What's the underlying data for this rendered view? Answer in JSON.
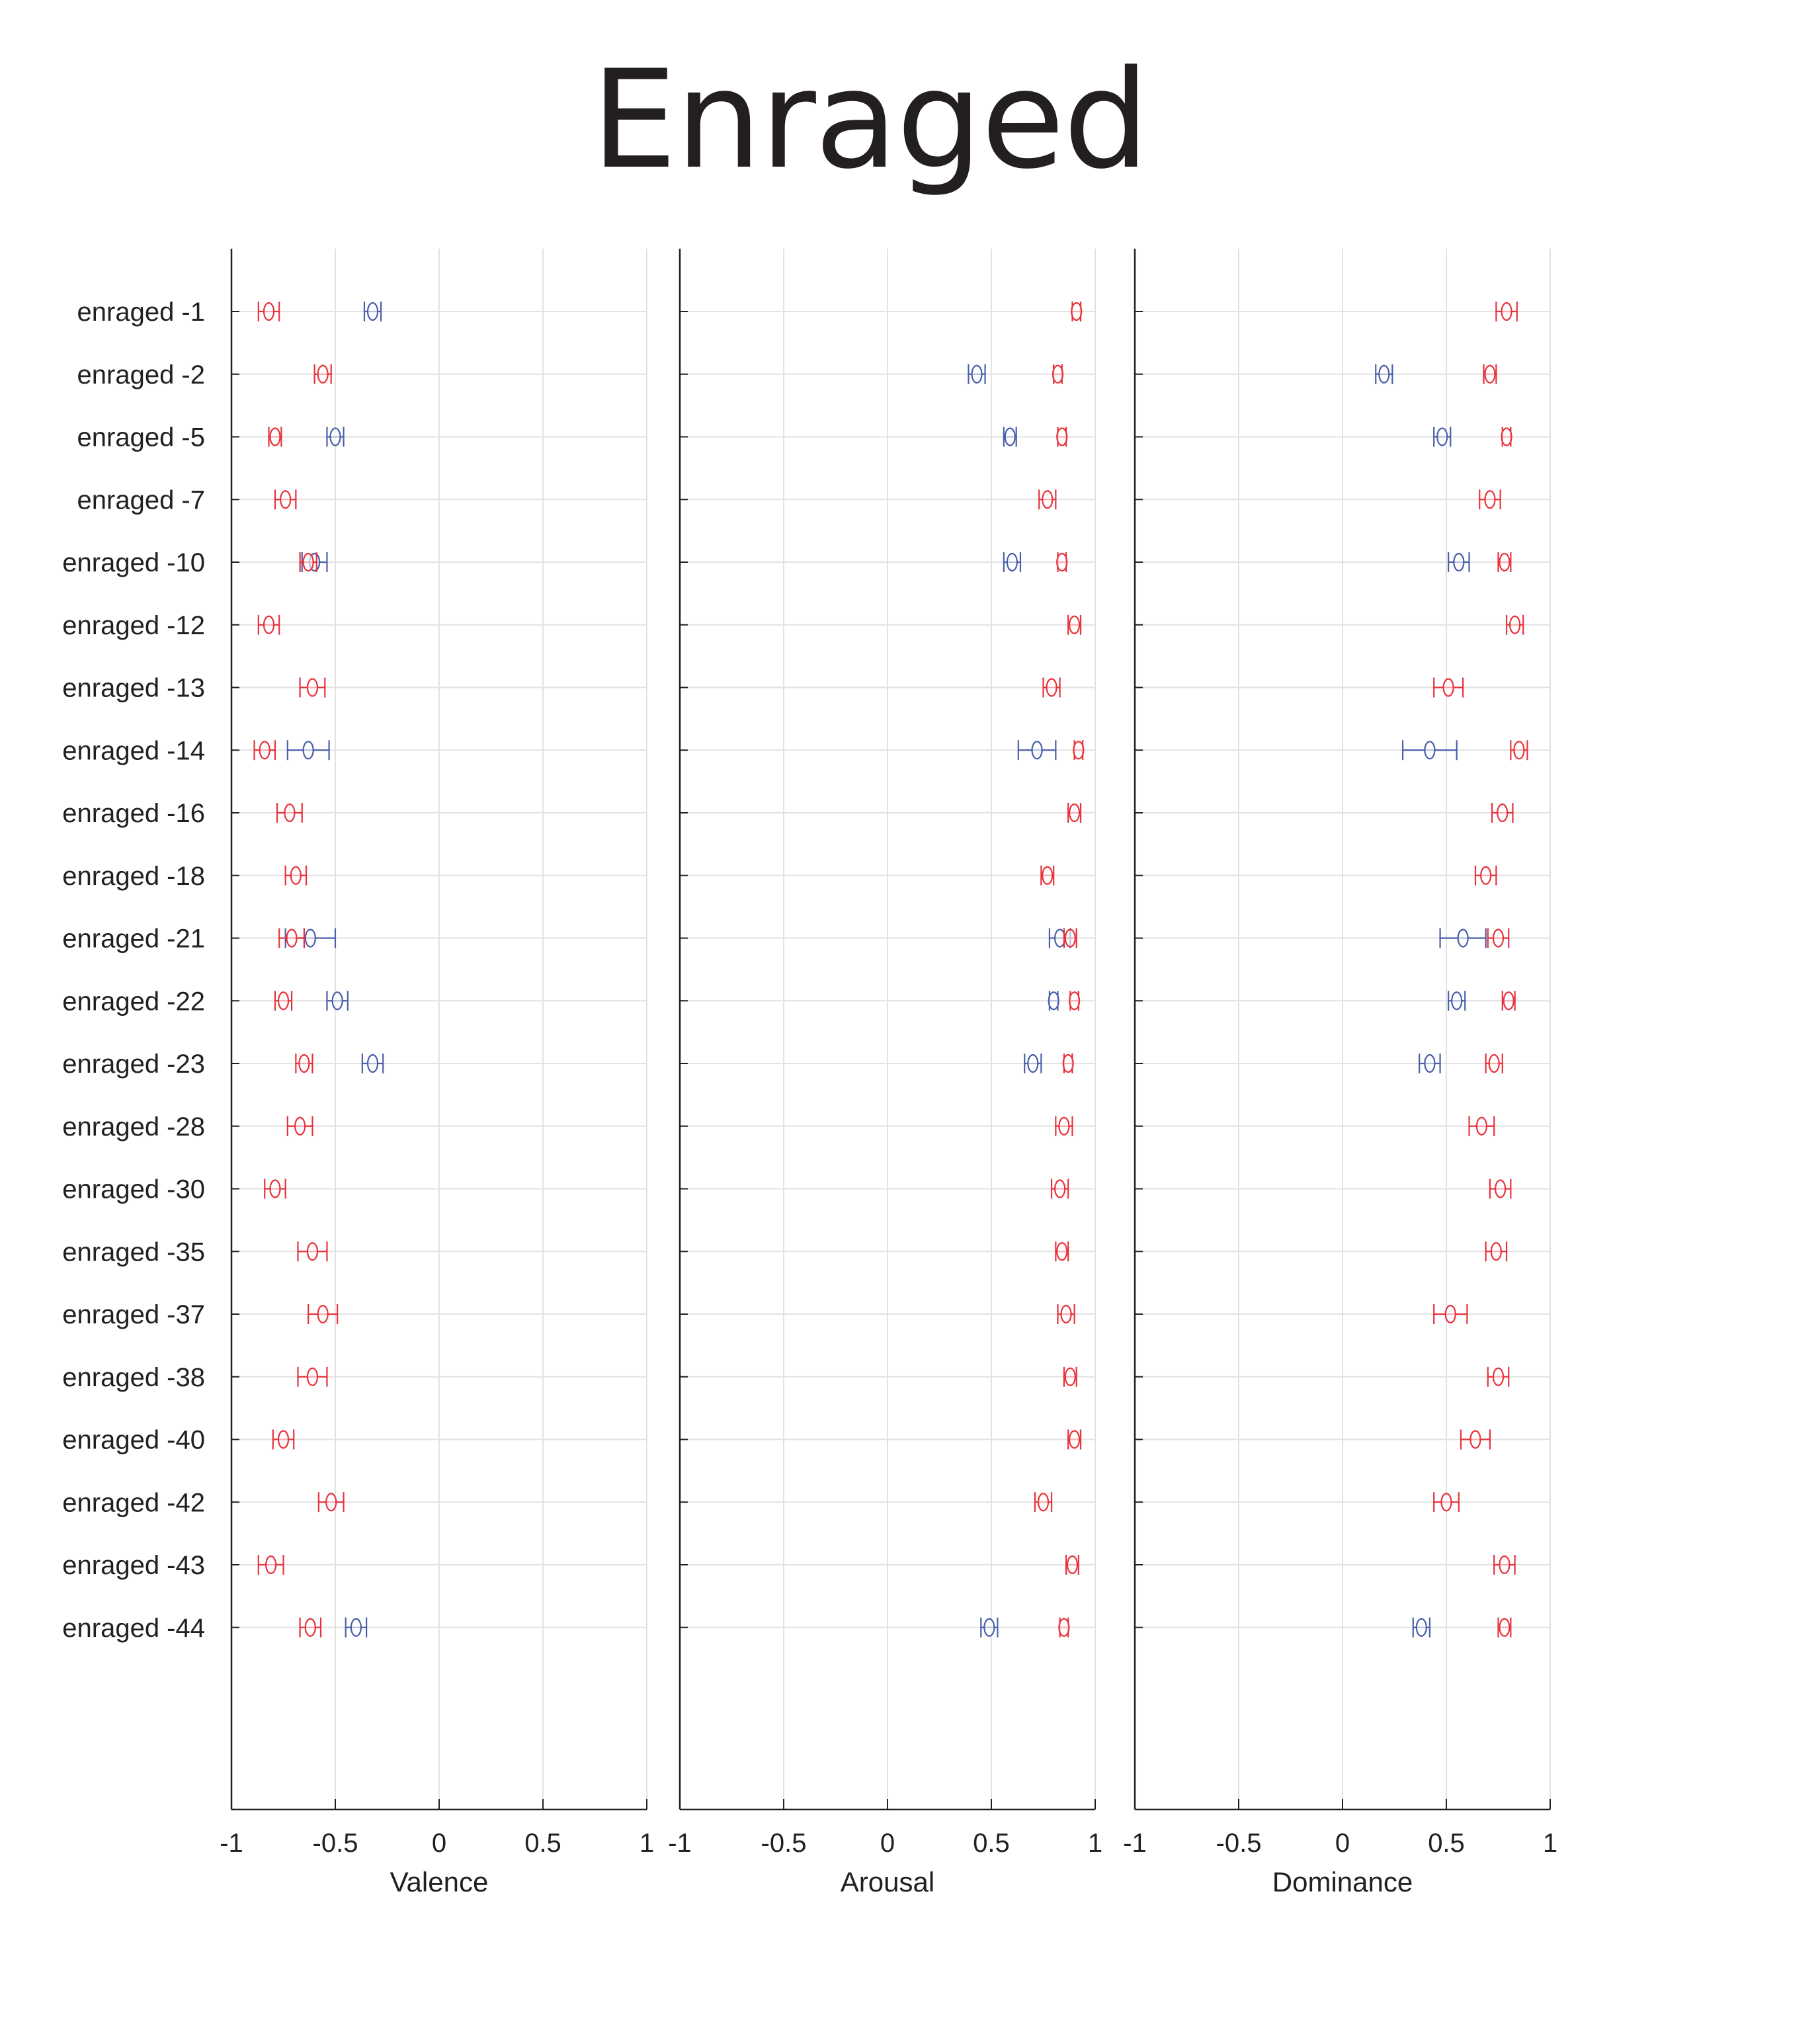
{
  "title": "Enraged",
  "chart_data": [
    {
      "type": "errorbar",
      "xlabel": "Valence",
      "xlim": [
        -1,
        1
      ],
      "xticks": [
        "-1",
        "-0.5",
        "0",
        "0.5",
        "1"
      ],
      "categories": [
        "enraged -1",
        "enraged -2",
        "enraged -5",
        "enraged -7",
        "enraged -10",
        "enraged -12",
        "enraged -13",
        "enraged -14",
        "enraged -16",
        "enraged -18",
        "enraged -21",
        "enraged -22",
        "enraged -23",
        "enraged -28",
        "enraged -30",
        "enraged -35",
        "enraged -37",
        "enraged -38",
        "enraged -40",
        "enraged -42",
        "enraged -43",
        "enraged -44"
      ],
      "grid": true,
      "series": [
        {
          "color": "#e8323c",
          "values": [
            -0.82,
            -0.56,
            -0.79,
            -0.74,
            -0.63,
            -0.82,
            -0.61,
            -0.84,
            -0.72,
            -0.69,
            -0.71,
            -0.75,
            -0.65,
            -0.67,
            -0.79,
            -0.61,
            -0.56,
            -0.61,
            -0.75,
            -0.52,
            -0.81,
            -0.62
          ],
          "err": [
            0.05,
            0.04,
            0.03,
            0.05,
            0.04,
            0.05,
            0.06,
            0.05,
            0.06,
            0.05,
            0.06,
            0.04,
            0.04,
            0.06,
            0.05,
            0.07,
            0.07,
            0.07,
            0.05,
            0.06,
            0.06,
            0.05
          ]
        },
        {
          "color": "#4a5fa8",
          "values": [
            -0.32,
            null,
            -0.5,
            null,
            -0.6,
            null,
            null,
            -0.63,
            null,
            null,
            -0.62,
            -0.49,
            -0.32,
            null,
            null,
            null,
            null,
            null,
            null,
            null,
            null,
            -0.4
          ],
          "err": [
            0.04,
            null,
            0.04,
            null,
            0.06,
            null,
            null,
            0.1,
            null,
            null,
            0.12,
            0.05,
            0.05,
            null,
            null,
            null,
            null,
            null,
            null,
            null,
            null,
            0.05
          ]
        }
      ]
    },
    {
      "type": "errorbar",
      "xlabel": "Arousal",
      "xlim": [
        -1,
        1
      ],
      "xticks": [
        "-1",
        "-0.5",
        "0",
        "0.5",
        "1"
      ],
      "grid": true,
      "series": [
        {
          "color": "#e8323c",
          "values": [
            0.91,
            0.82,
            0.84,
            0.77,
            0.84,
            0.9,
            0.79,
            0.92,
            0.9,
            0.77,
            0.88,
            0.9,
            0.87,
            0.85,
            0.83,
            0.84,
            0.86,
            0.88,
            0.9,
            0.75,
            0.89,
            0.85
          ],
          "err": [
            0.02,
            0.02,
            0.02,
            0.04,
            0.02,
            0.03,
            0.04,
            0.02,
            0.03,
            0.03,
            0.03,
            0.02,
            0.02,
            0.04,
            0.04,
            0.03,
            0.04,
            0.03,
            0.03,
            0.04,
            0.03,
            0.02
          ]
        },
        {
          "color": "#4a5fa8",
          "values": [
            null,
            0.43,
            0.59,
            null,
            0.6,
            null,
            null,
            0.72,
            null,
            null,
            0.83,
            0.8,
            0.7,
            null,
            null,
            null,
            null,
            null,
            null,
            null,
            null,
            0.49
          ],
          "err": [
            null,
            0.04,
            0.03,
            null,
            0.04,
            null,
            null,
            0.09,
            null,
            null,
            0.05,
            0.02,
            0.04,
            null,
            null,
            null,
            null,
            null,
            null,
            null,
            null,
            0.04
          ]
        }
      ]
    },
    {
      "type": "errorbar",
      "xlabel": "Dominance",
      "xlim": [
        -1,
        1
      ],
      "xticks": [
        "-1",
        "-0.5",
        "0",
        "0.5",
        "1"
      ],
      "grid": true,
      "series": [
        {
          "color": "#e8323c",
          "values": [
            0.79,
            0.71,
            0.79,
            0.71,
            0.78,
            0.83,
            0.51,
            0.85,
            0.77,
            0.69,
            0.75,
            0.8,
            0.73,
            0.67,
            0.76,
            0.74,
            0.52,
            0.75,
            0.64,
            0.5,
            0.78,
            0.78
          ],
          "err": [
            0.05,
            0.03,
            0.02,
            0.05,
            0.03,
            0.04,
            0.07,
            0.04,
            0.05,
            0.05,
            0.05,
            0.03,
            0.04,
            0.06,
            0.05,
            0.05,
            0.08,
            0.05,
            0.07,
            0.06,
            0.05,
            0.03
          ]
        },
        {
          "color": "#4a5fa8",
          "values": [
            null,
            0.2,
            0.48,
            null,
            0.56,
            null,
            null,
            0.42,
            null,
            null,
            0.58,
            0.55,
            0.42,
            null,
            null,
            null,
            null,
            null,
            null,
            null,
            null,
            0.38
          ],
          "err": [
            null,
            0.04,
            0.04,
            null,
            0.05,
            null,
            null,
            0.13,
            null,
            null,
            0.11,
            0.04,
            0.05,
            null,
            null,
            null,
            null,
            null,
            null,
            null,
            null,
            0.04
          ]
        }
      ]
    }
  ]
}
